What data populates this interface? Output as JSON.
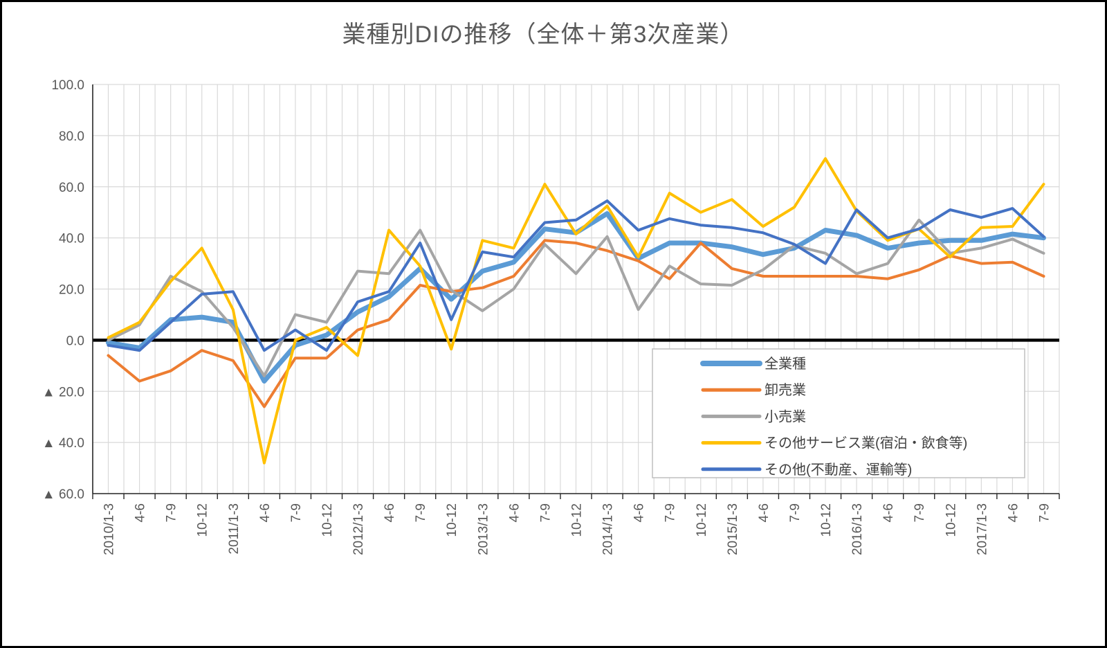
{
  "title": "業種別DIの推移（全体＋第3次産業）",
  "colors": {
    "all_industries": "#5B9BD5",
    "wholesale": "#ED7D31",
    "retail": "#A5A5A5",
    "other_services": "#FFC000",
    "other": "#4472C4",
    "zero_line": "#000000",
    "gridline": "#D9D9D9",
    "axis_text": "#595959",
    "legend_border": "#BFBFBF"
  },
  "chart_data": {
    "type": "line",
    "title": "業種別DIの推移（全体＋第3次産業）",
    "xlabel": "",
    "ylabel": "",
    "ylim": [
      -60,
      100
    ],
    "ytick_step": 20,
    "ytick_labels": [
      "100.0",
      "80.0",
      "60.0",
      "40.0",
      "20.0",
      "0.0",
      "▲ 20.0",
      "▲ 40.0",
      "▲ 60.0"
    ],
    "grid": true,
    "legend_position": "inside-lower-right",
    "categories": [
      "2010/1-3",
      "4-6",
      "7-9",
      "10-12",
      "2011/1-3",
      "4-6",
      "7-9",
      "10-12",
      "2012/1-3",
      "4-6",
      "7-9",
      "10-12",
      "2013/1-3",
      "4-6",
      "7-9",
      "10-12",
      "2014/1-3",
      "4-6",
      "7-9",
      "10-12",
      "2015/1-3",
      "4-6",
      "7-9",
      "10-12",
      "2016/1-3",
      "4-6",
      "7-9",
      "10-12",
      "2017/1-3",
      "4-6",
      "7-9"
    ],
    "series": [
      {
        "name": "全業種",
        "slug": "all-industries",
        "color": "#5B9BD5",
        "stroke_width": 7,
        "values": [
          -1,
          -3,
          8,
          9,
          7,
          -16,
          -2,
          2,
          11,
          17,
          28,
          16,
          27,
          30.5,
          43.5,
          42,
          49.5,
          32,
          38,
          38,
          36.5,
          33.5,
          36,
          43,
          41,
          36,
          38,
          39,
          39,
          41.5,
          40
        ]
      },
      {
        "name": "卸売業",
        "slug": "wholesale",
        "color": "#ED7D31",
        "stroke_width": 4,
        "values": [
          -6,
          -16,
          -12,
          -4,
          -8,
          -26,
          -7,
          -7,
          4,
          8,
          21.5,
          19,
          20.5,
          25,
          39,
          38,
          35,
          31,
          24,
          38,
          28,
          25,
          25,
          25,
          25,
          24,
          27.5,
          33,
          30,
          30.5,
          25
        ]
      },
      {
        "name": "小売業",
        "slug": "retail",
        "color": "#A5A5A5",
        "stroke_width": 4,
        "values": [
          0,
          6,
          25,
          19,
          5,
          -14,
          10,
          7,
          27,
          26,
          43,
          19.5,
          11.5,
          20,
          37.5,
          26,
          40.5,
          12,
          29,
          22,
          21.5,
          27.5,
          37,
          34,
          26,
          30,
          47,
          34,
          36,
          39.5,
          34
        ]
      },
      {
        "name": "その他サービス業(宿泊・飲食等)",
        "slug": "other-services",
        "color": "#FFC000",
        "stroke_width": 4,
        "values": [
          1,
          7,
          23,
          36,
          12,
          -48,
          0,
          5,
          -6,
          43,
          29,
          -3.5,
          39,
          36,
          61,
          41.5,
          52.5,
          32.5,
          57.5,
          50,
          55,
          44.5,
          52,
          71,
          50.5,
          39,
          43.5,
          32.5,
          44,
          44.5,
          61
        ]
      },
      {
        "name": "その他(不動産、運輸等)",
        "slug": "other",
        "color": "#4472C4",
        "stroke_width": 4,
        "values": [
          -2,
          -4,
          7,
          18,
          19,
          -4,
          4,
          -4,
          15,
          19,
          38,
          8,
          34.5,
          32.5,
          46,
          47,
          54.5,
          43,
          47.5,
          45,
          44,
          42,
          37.5,
          30,
          51,
          40,
          43.5,
          51,
          48,
          51.5,
          40.5
        ]
      }
    ]
  }
}
